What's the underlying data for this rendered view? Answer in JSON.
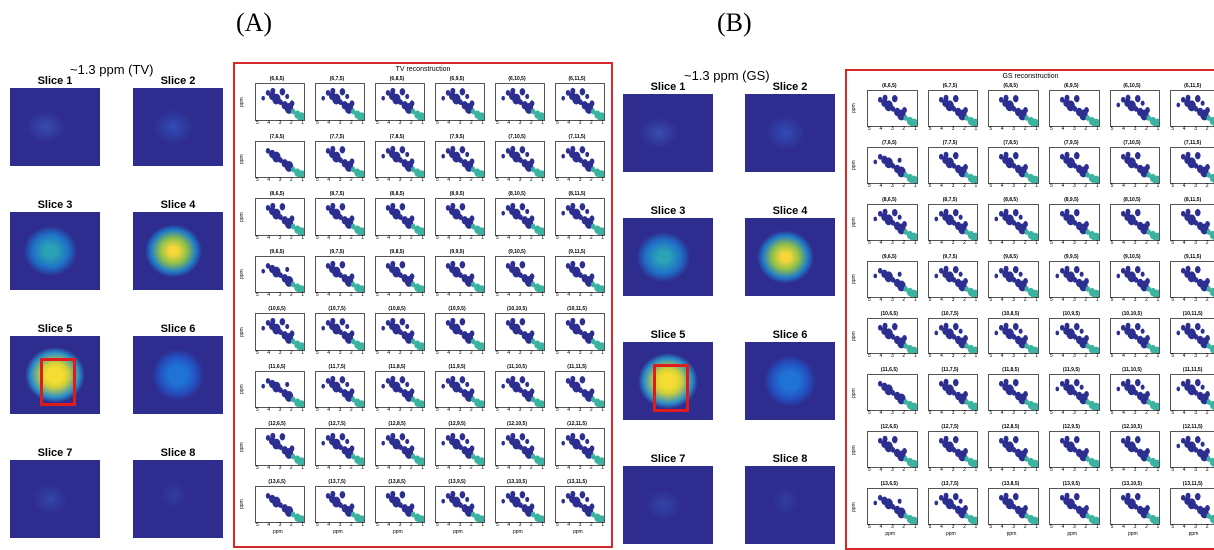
{
  "panels": [
    {
      "label": "(A)",
      "ppm_title": "~1.3 ppm (TV)",
      "recon_title": "TV reconstruction",
      "slices": [
        "Slice 1",
        "Slice 2",
        "Slice 3",
        "Slice 4",
        "Slice 5",
        "Slice 6",
        "Slice 7",
        "Slice 8"
      ],
      "cell_labels": [
        [
          "(6,6,5)",
          "(6,7,5)",
          "(6,8,5)",
          "(6,9,5)",
          "(6,10,5)",
          "(6,11,5)"
        ],
        [
          "(7,6,5)",
          "(7,7,5)",
          "(7,8,5)",
          "(7,9,5)",
          "(7,10,5)",
          "(7,11,5)"
        ],
        [
          "(8,6,5)",
          "(8,7,5)",
          "(8,8,5)",
          "(8,9,5)",
          "(8,10,5)",
          "(8,11,5)"
        ],
        [
          "(9,6,5)",
          "(9,7,5)",
          "(9,8,5)",
          "(9,9,5)",
          "(9,10,5)",
          "(9,11,5)"
        ],
        [
          "(10,6,5)",
          "(10,7,5)",
          "(10,8,5)",
          "(10,9,5)",
          "(10,10,5)",
          "(10,11,5)"
        ],
        [
          "(11,6,5)",
          "(11,7,5)",
          "(11,8,5)",
          "(11,9,5)",
          "(11,10,5)",
          "(11,11,5)"
        ],
        [
          "(12,6,5)",
          "(12,7,5)",
          "(12,8,5)",
          "(12,9,5)",
          "(12,10,5)",
          "(12,11,5)"
        ],
        [
          "(13,6,5)",
          "(13,7,5)",
          "(13,8,5)",
          "(13,9,5)",
          "(13,10,5)",
          "(13,11,5)"
        ]
      ]
    },
    {
      "label": "(B)",
      "ppm_title": "~1.3 ppm (GS)",
      "recon_title": "GS reconstruction",
      "slices": [
        "Slice 1",
        "Slice 2",
        "Slice 3",
        "Slice 4",
        "Slice 5",
        "Slice 6",
        "Slice 7",
        "Slice 8"
      ],
      "cell_labels": [
        [
          "(6,6,5)",
          "(6,7,5)",
          "(6,8,5)",
          "(6,9,5)",
          "(6,10,5)",
          "(6,11,5)"
        ],
        [
          "(7,6,5)",
          "(7,7,5)",
          "(7,8,5)",
          "(7,9,5)",
          "(7,10,5)",
          "(7,11,5)"
        ],
        [
          "(8,6,5)",
          "(8,7,5)",
          "(8,8,5)",
          "(8,9,5)",
          "(8,10,5)",
          "(8,11,5)"
        ],
        [
          "(9,6,5)",
          "(9,7,5)",
          "(9,8,5)",
          "(9,9,5)",
          "(9,10,5)",
          "(9,11,5)"
        ],
        [
          "(10,6,5)",
          "(10,7,5)",
          "(10,8,5)",
          "(10,9,5)",
          "(10,10,5)",
          "(10,11,5)"
        ],
        [
          "(11,6,5)",
          "(11,7,5)",
          "(11,8,5)",
          "(11,9,5)",
          "(11,10,5)",
          "(11,11,5)"
        ],
        [
          "(12,6,5)",
          "(12,7,5)",
          "(12,8,5)",
          "(12,9,5)",
          "(12,10,5)",
          "(12,11,5)"
        ],
        [
          "(13,6,5)",
          "(13,7,5)",
          "(13,8,5)",
          "(13,9,5)",
          "(13,10,5)",
          "(13,11,5)"
        ]
      ]
    }
  ],
  "axis": {
    "ticks_x": [
      "5",
      "4",
      "3",
      "2",
      "1"
    ],
    "ticks_y": [
      "1",
      "2",
      "3",
      "4",
      "5"
    ],
    "unit": "ppm"
  },
  "colors": {
    "background_map": "#2e2c8e",
    "highlight": "#e01b1b",
    "frame": "#d62828",
    "peak": "#2c2f8f",
    "peak_hot": "#3bb3a0"
  }
}
